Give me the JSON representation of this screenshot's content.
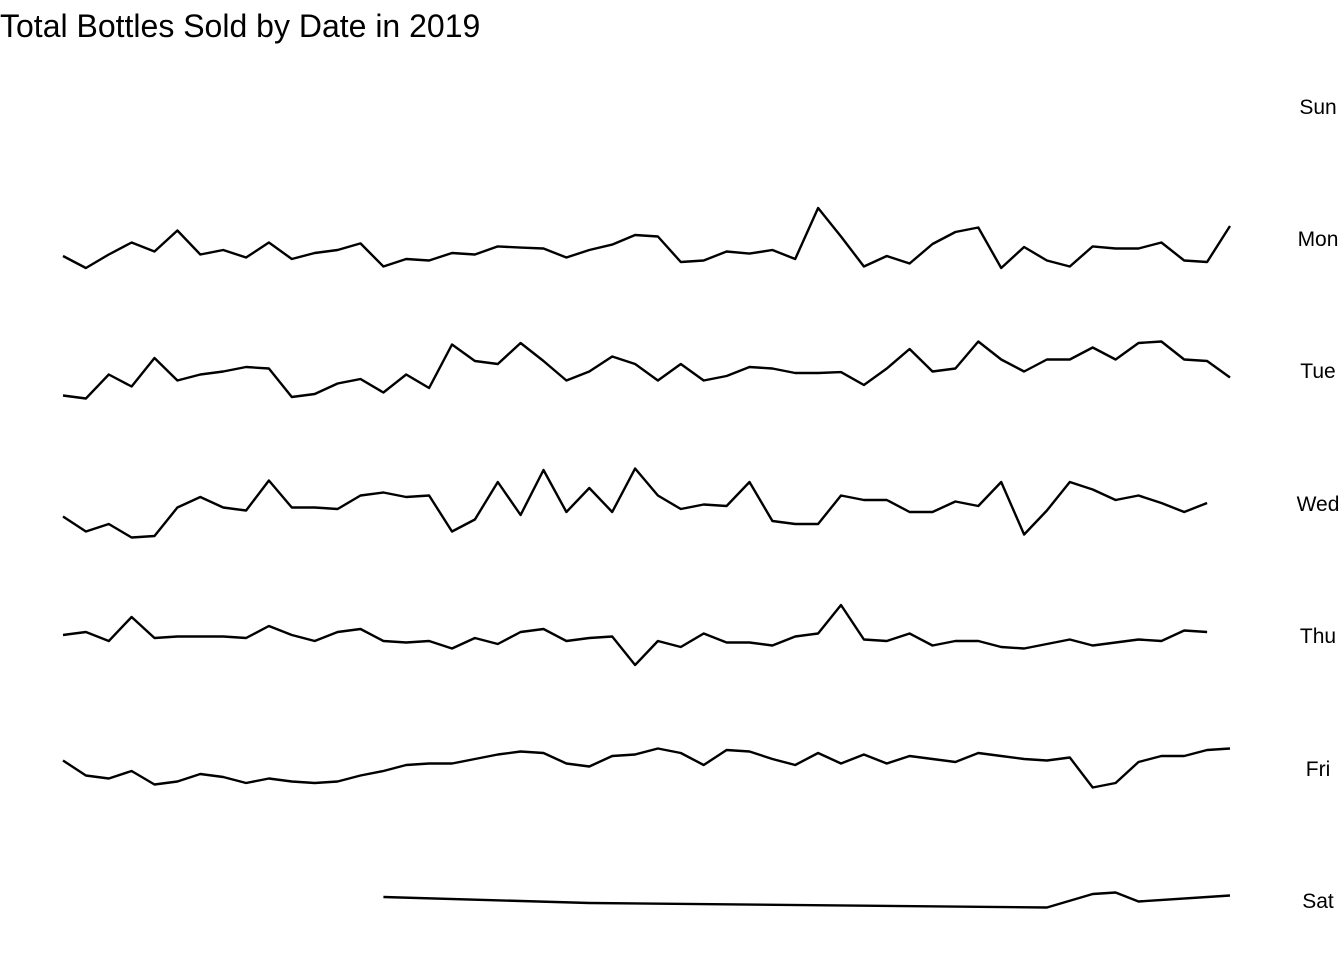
{
  "chart_data": {
    "type": "line",
    "title": "Total Bottles Sold by Date in 2019",
    "xlabel": "",
    "ylabel": "",
    "grid": false,
    "legend": "none",
    "line_color": "#000000",
    "x_index_range": [
      1,
      52
    ],
    "facets": [
      {
        "label": "Sun",
        "x": [],
        "values": []
      },
      {
        "label": "Mon",
        "x": [
          1,
          2,
          3,
          4,
          5,
          6,
          7,
          8,
          9,
          10,
          11,
          12,
          13,
          14,
          15,
          16,
          17,
          18,
          19,
          20,
          21,
          22,
          23,
          24,
          25,
          26,
          27,
          28,
          29,
          30,
          31,
          32,
          33,
          34,
          35,
          36,
          37,
          38,
          39,
          40,
          41,
          42,
          43,
          44,
          45,
          46,
          47,
          48,
          49,
          50,
          51,
          52
        ],
        "values": [
          0.4,
          0.0,
          0.45,
          0.85,
          0.55,
          1.25,
          0.45,
          0.6,
          0.35,
          0.85,
          0.3,
          0.5,
          0.6,
          0.82,
          0.05,
          0.3,
          0.25,
          0.5,
          0.45,
          0.72,
          0.68,
          0.65,
          0.35,
          0.6,
          0.78,
          1.1,
          1.05,
          0.2,
          0.25,
          0.55,
          0.48,
          0.6,
          0.3,
          2.0,
          1.05,
          0.05,
          0.4,
          0.15,
          0.8,
          1.2,
          1.35,
          0.0,
          0.7,
          0.25,
          0.05,
          0.72,
          0.65,
          0.65,
          0.85,
          0.25,
          0.2,
          1.4
        ]
      },
      {
        "label": "Tue",
        "x": [
          1,
          2,
          3,
          4,
          5,
          6,
          7,
          8,
          9,
          10,
          11,
          12,
          13,
          14,
          15,
          16,
          17,
          18,
          19,
          20,
          21,
          22,
          23,
          24,
          25,
          26,
          27,
          28,
          29,
          30,
          31,
          32,
          33,
          34,
          35,
          36,
          37,
          38,
          39,
          40,
          41,
          42,
          43,
          44,
          45,
          46,
          47,
          48,
          49,
          50,
          51,
          52
        ],
        "values": [
          0.1,
          0.0,
          0.8,
          0.4,
          1.35,
          0.6,
          0.8,
          0.9,
          1.05,
          1.0,
          0.05,
          0.15,
          0.5,
          0.65,
          0.2,
          0.8,
          0.35,
          1.8,
          1.25,
          1.15,
          1.85,
          1.25,
          0.6,
          0.9,
          1.4,
          1.15,
          0.6,
          1.15,
          0.6,
          0.75,
          1.05,
          1.0,
          0.85,
          0.85,
          0.88,
          0.45,
          1.0,
          1.65,
          0.9,
          1.0,
          1.9,
          1.3,
          0.9,
          1.3,
          1.3,
          1.7,
          1.3,
          1.85,
          1.9,
          1.3,
          1.25,
          0.7
        ]
      },
      {
        "label": "Wed",
        "x": [
          1,
          2,
          3,
          4,
          5,
          6,
          7,
          8,
          9,
          10,
          11,
          12,
          13,
          14,
          15,
          16,
          17,
          18,
          19,
          20,
          21,
          22,
          23,
          24,
          25,
          26,
          27,
          28,
          29,
          30,
          31,
          32,
          33,
          34,
          35,
          36,
          37,
          38,
          39,
          40,
          41,
          42,
          43,
          44,
          45,
          46,
          47,
          48,
          49,
          50,
          51,
          52
        ],
        "values": [
          0.7,
          0.2,
          0.45,
          0.0,
          0.05,
          1.0,
          1.35,
          1.0,
          0.9,
          1.9,
          1.0,
          1.0,
          0.95,
          1.4,
          1.5,
          1.35,
          1.4,
          0.2,
          0.6,
          1.85,
          0.75,
          2.25,
          0.85,
          1.65,
          0.85,
          2.3,
          1.4,
          0.95,
          1.1,
          1.05,
          1.85,
          0.55,
          0.45,
          0.45,
          1.4,
          1.25,
          1.25,
          0.85,
          0.85,
          1.2,
          1.05,
          1.85,
          0.1,
          0.9,
          1.85,
          1.6,
          1.25,
          1.4,
          1.15,
          0.85,
          1.15,
          null
        ]
      },
      {
        "label": "Thu",
        "x": [
          1,
          2,
          3,
          4,
          5,
          6,
          7,
          8,
          9,
          10,
          11,
          12,
          13,
          14,
          15,
          16,
          17,
          18,
          19,
          20,
          21,
          22,
          23,
          24,
          25,
          26,
          27,
          28,
          29,
          30,
          31,
          32,
          33,
          34,
          35,
          36,
          37,
          38,
          39,
          40,
          41,
          42,
          43,
          44,
          45,
          46,
          47,
          48,
          49,
          50,
          51,
          52
        ],
        "values": [
          1.0,
          1.1,
          0.8,
          1.6,
          0.9,
          0.95,
          0.95,
          0.95,
          0.9,
          1.3,
          1.0,
          0.8,
          1.1,
          1.2,
          0.8,
          0.75,
          0.8,
          0.55,
          0.9,
          0.7,
          1.1,
          1.2,
          0.8,
          0.9,
          0.95,
          0.0,
          0.8,
          0.6,
          1.05,
          0.75,
          0.75,
          0.65,
          0.95,
          1.05,
          2.0,
          0.85,
          0.8,
          1.05,
          0.65,
          0.8,
          0.8,
          0.6,
          0.55,
          0.7,
          0.85,
          0.65,
          0.75,
          0.85,
          0.8,
          1.15,
          1.1,
          null
        ]
      },
      {
        "label": "Fri",
        "x": [
          1,
          2,
          3,
          4,
          5,
          6,
          7,
          8,
          9,
          10,
          11,
          12,
          13,
          14,
          15,
          16,
          17,
          18,
          19,
          20,
          21,
          22,
          23,
          24,
          25,
          26,
          27,
          28,
          29,
          30,
          31,
          32,
          33,
          34,
          35,
          36,
          37,
          38,
          39,
          40,
          41,
          42,
          43,
          44,
          45,
          46,
          47,
          48,
          49,
          50,
          51,
          52
        ],
        "values": [
          0.9,
          0.4,
          0.3,
          0.55,
          0.1,
          0.2,
          0.45,
          0.35,
          0.15,
          0.3,
          0.2,
          0.15,
          0.2,
          0.4,
          0.55,
          0.75,
          0.8,
          0.8,
          0.95,
          1.1,
          1.2,
          1.15,
          0.8,
          0.7,
          1.05,
          1.1,
          1.3,
          1.15,
          0.75,
          1.25,
          1.2,
          0.95,
          0.75,
          1.15,
          0.8,
          1.1,
          0.8,
          1.05,
          0.95,
          0.85,
          1.15,
          1.05,
          0.95,
          0.9,
          1.0,
          0.0,
          0.15,
          0.85,
          1.05,
          1.05,
          1.25,
          1.3
        ]
      },
      {
        "label": "Sat",
        "x": [
          15,
          24,
          44,
          46,
          47,
          48,
          52
        ],
        "values": [
          0.35,
          0.15,
          0.0,
          0.45,
          0.5,
          0.2,
          0.4
        ]
      }
    ]
  }
}
